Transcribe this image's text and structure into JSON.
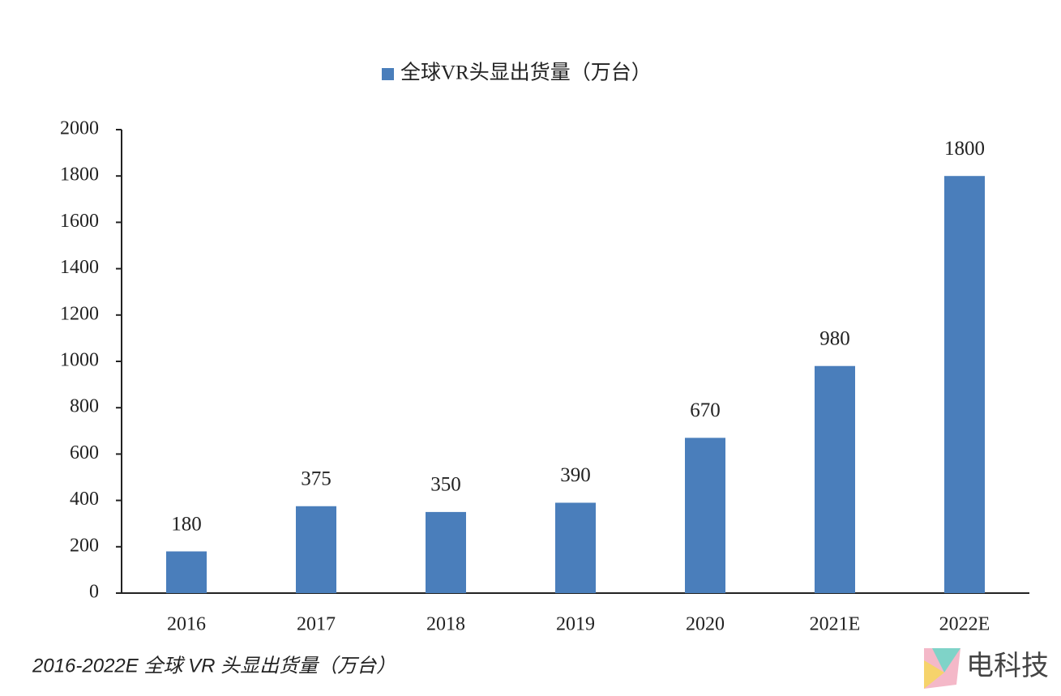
{
  "chart_data": {
    "type": "bar",
    "categories": [
      "2016",
      "2017",
      "2018",
      "2019",
      "2020",
      "2021E",
      "2022E"
    ],
    "series": [
      {
        "name": "全球VR头显出货量（万台）",
        "color": "#4a7ebb",
        "values": [
          180,
          375,
          350,
          390,
          670,
          980,
          1800
        ]
      }
    ],
    "ylim": [
      0,
      2000
    ],
    "yticks": [
      0,
      200,
      400,
      600,
      800,
      1000,
      1200,
      1400,
      1600,
      1800,
      2000
    ],
    "legend": "top",
    "data_labels": true,
    "caption": "2016-2022E 全球 VR 头显出货量（万台）",
    "watermark": "电科技"
  }
}
